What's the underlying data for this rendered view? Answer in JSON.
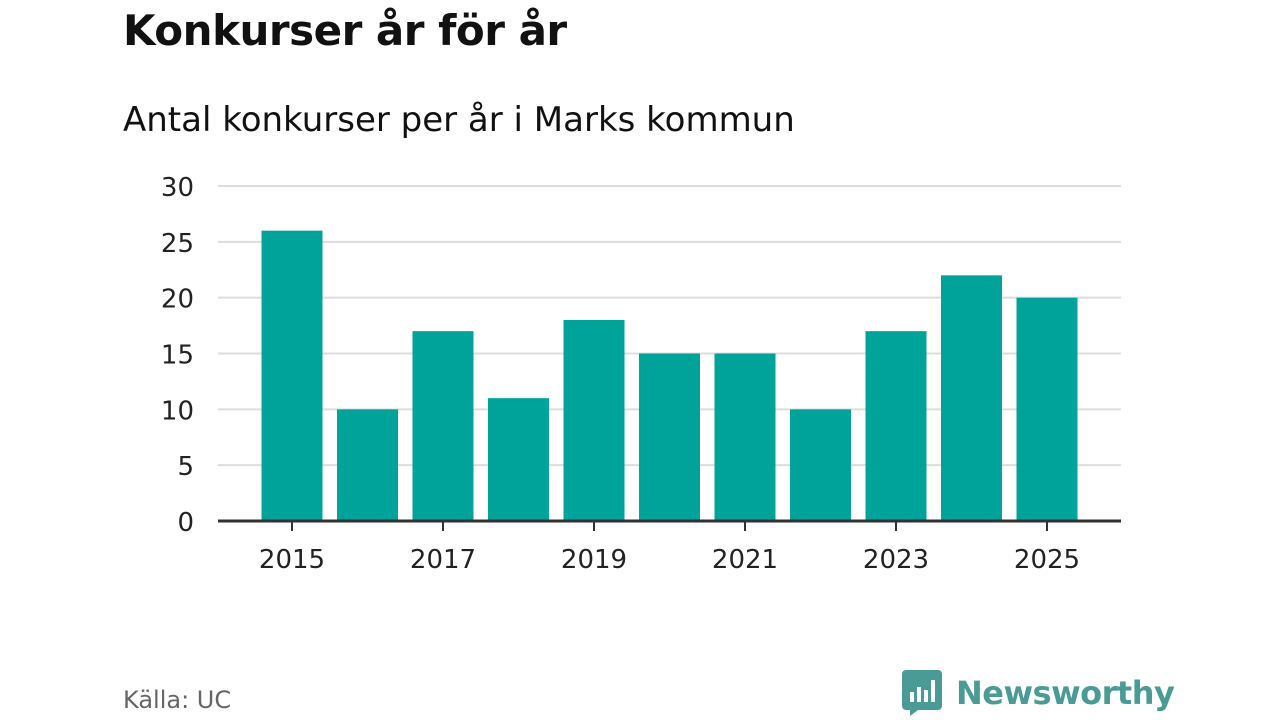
{
  "chart_data": {
    "type": "bar",
    "title": "Konkurser år för år",
    "subtitle": "Antal konkurser per år i Marks kommun",
    "categories": [
      "2015",
      "2016",
      "2017",
      "2018",
      "2019",
      "2020",
      "2021",
      "2022",
      "2023",
      "2024",
      "2025"
    ],
    "values": [
      26,
      10,
      17,
      11,
      18,
      15,
      15,
      10,
      17,
      22,
      20
    ],
    "x_tick_labels": [
      "2015",
      "2017",
      "2019",
      "2021",
      "2023",
      "2025"
    ],
    "y_ticks": [
      "0",
      "5",
      "10",
      "15",
      "20",
      "25",
      "30"
    ],
    "xlabel": "",
    "ylabel": "",
    "ylim": [
      0,
      30
    ],
    "grid": true,
    "legend": "none",
    "bar_color": "#00a39a"
  },
  "footer": {
    "source": "Källa: UC",
    "brand": "Newsworthy",
    "brand_icon": "bar-chart-speech-bubble-icon",
    "brand_color": "#4a9b95"
  }
}
